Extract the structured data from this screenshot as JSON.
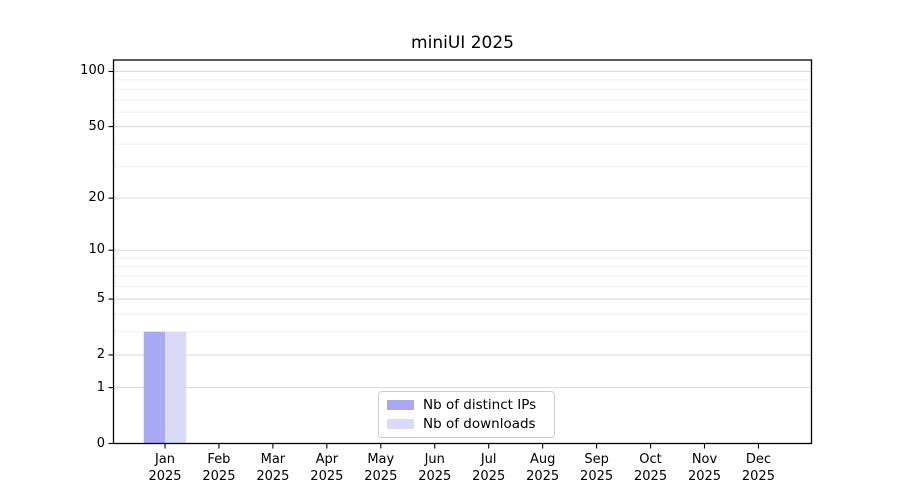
{
  "chart_data": {
    "type": "bar",
    "title": "miniUI 2025",
    "categories": [
      {
        "month": "Jan",
        "year": "2025"
      },
      {
        "month": "Feb",
        "year": "2025"
      },
      {
        "month": "Mar",
        "year": "2025"
      },
      {
        "month": "Apr",
        "year": "2025"
      },
      {
        "month": "May",
        "year": "2025"
      },
      {
        "month": "Jun",
        "year": "2025"
      },
      {
        "month": "Jul",
        "year": "2025"
      },
      {
        "month": "Aug",
        "year": "2025"
      },
      {
        "month": "Sep",
        "year": "2025"
      },
      {
        "month": "Oct",
        "year": "2025"
      },
      {
        "month": "Nov",
        "year": "2025"
      },
      {
        "month": "Dec",
        "year": "2025"
      }
    ],
    "series": [
      {
        "name": "Nb of distinct IPs",
        "color": "#a9a9f3",
        "values": [
          3,
          0,
          0,
          0,
          0,
          0,
          0,
          0,
          0,
          0,
          0,
          0
        ]
      },
      {
        "name": "Nb of downloads",
        "color": "#d9d9f8",
        "values": [
          3,
          0,
          0,
          0,
          0,
          0,
          0,
          0,
          0,
          0,
          0,
          0
        ]
      }
    ],
    "yscale": "log(1+x)",
    "yticks": [
      0,
      1,
      2,
      5,
      10,
      20,
      50,
      100
    ],
    "minor_gridline_values": [
      3,
      4,
      6,
      7,
      8,
      9,
      30,
      40,
      60,
      70,
      80,
      90
    ],
    "ylim": [
      0,
      115
    ],
    "xlabel": "",
    "ylabel": "",
    "grid": "horizontal major+minor",
    "legend_position": "inside bottom-center"
  },
  "colors": {
    "background": "#ffffff",
    "frame": "#000000",
    "major_grid": "#d9d9d9",
    "minor_grid": "#efefef",
    "tick": "#000000",
    "text": "#000000",
    "legend_border": "#cccccc"
  }
}
